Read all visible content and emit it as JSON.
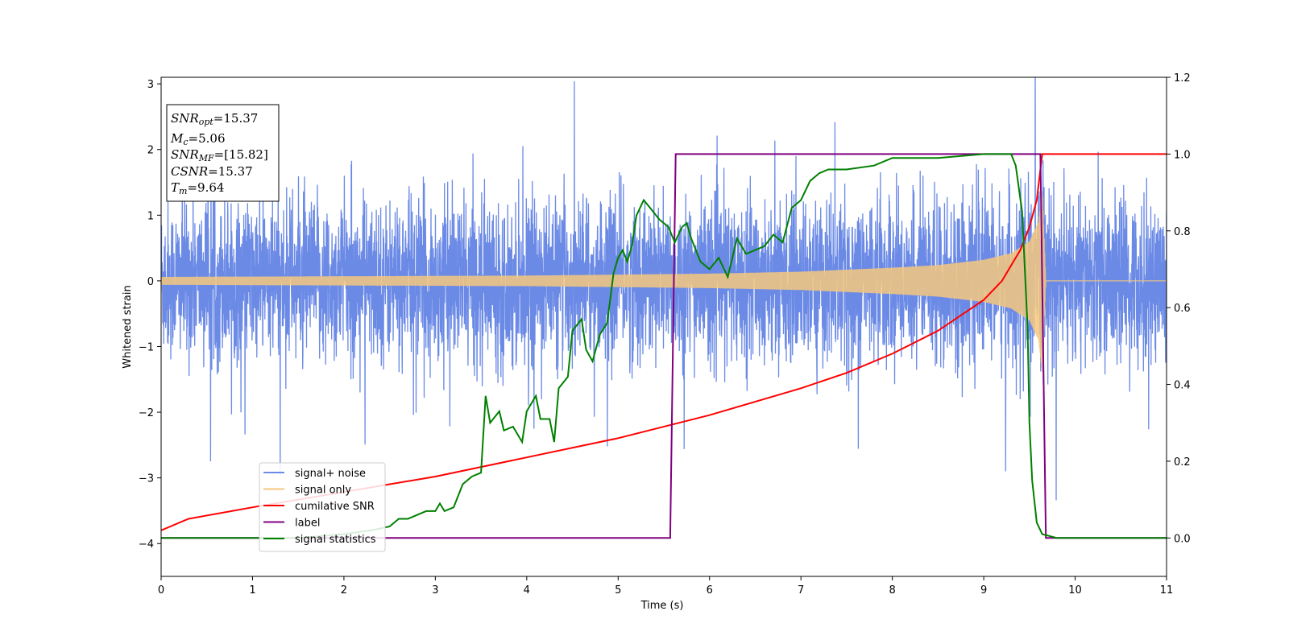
{
  "chart_data": {
    "type": "line",
    "xlabel": "Time (s)",
    "ylabel": "Whitened strain",
    "xlim": [
      0,
      11
    ],
    "ylim": [
      -4.5,
      3.1
    ],
    "y2lim": [
      -0.1,
      1.2
    ],
    "xticks": [
      "0",
      "1",
      "2",
      "3",
      "4",
      "5",
      "6",
      "7",
      "8",
      "9",
      "10",
      "11"
    ],
    "yticks": [
      "−4",
      "−3",
      "−2",
      "−1",
      "0",
      "1",
      "2",
      "3"
    ],
    "y2ticks": [
      "0.0",
      "0.2",
      "0.4",
      "0.6",
      "0.8",
      "1.0",
      "1.2"
    ],
    "legend_position": "lower-left",
    "grid": false,
    "annotation": {
      "snr_opt": {
        "label": "SNR",
        "sub": "opt",
        "value": "=15.37"
      },
      "mc": {
        "label": "M",
        "sub": "c",
        "value": "=5.06"
      },
      "snr_mf": {
        "label": "SNR",
        "sub": "MF",
        "value": "=[15.82]"
      },
      "csnr": {
        "label": "CSNR",
        "value": "=15.37"
      },
      "tm": {
        "label": "T",
        "sub": "m",
        "value": "=9.64"
      }
    },
    "series": [
      {
        "name": "signal+ noise",
        "color": "#6b8ae6",
        "axis": "left",
        "kind": "noise",
        "sigma": 0.95,
        "end": 11
      },
      {
        "name": "signal only",
        "color": "#f5c77e",
        "axis": "left",
        "kind": "chirp",
        "merger": 9.64,
        "envelope": [
          [
            0,
            0.06
          ],
          [
            2,
            0.07
          ],
          [
            4,
            0.08
          ],
          [
            6,
            0.11
          ],
          [
            7,
            0.14
          ],
          [
            8,
            0.2
          ],
          [
            8.5,
            0.24
          ],
          [
            9,
            0.32
          ],
          [
            9.3,
            0.42
          ],
          [
            9.5,
            0.6
          ],
          [
            9.6,
            0.9
          ],
          [
            9.64,
            1.4
          ],
          [
            9.68,
            0.0
          ],
          [
            11,
            0.0
          ]
        ]
      },
      {
        "name": "cumilative SNR",
        "color": "#ff0000",
        "axis": "right",
        "points": [
          [
            0,
            0.02
          ],
          [
            0.3,
            0.05
          ],
          [
            1,
            0.08
          ],
          [
            2,
            0.12
          ],
          [
            3,
            0.16
          ],
          [
            4,
            0.21
          ],
          [
            5,
            0.26
          ],
          [
            6,
            0.32
          ],
          [
            7,
            0.39
          ],
          [
            7.5,
            0.43
          ],
          [
            8,
            0.48
          ],
          [
            8.5,
            0.54
          ],
          [
            9,
            0.62
          ],
          [
            9.2,
            0.67
          ],
          [
            9.4,
            0.75
          ],
          [
            9.5,
            0.81
          ],
          [
            9.58,
            0.88
          ],
          [
            9.64,
            1.0
          ],
          [
            11,
            1.0
          ]
        ]
      },
      {
        "name": "label",
        "color": "#800080",
        "axis": "right",
        "points": [
          [
            0,
            0
          ],
          [
            5.57,
            0
          ],
          [
            5.63,
            1
          ],
          [
            9.62,
            1
          ],
          [
            9.68,
            0
          ],
          [
            11,
            0
          ]
        ]
      },
      {
        "name": "signal statistics",
        "color": "#008000",
        "axis": "right",
        "points": [
          [
            0,
            0
          ],
          [
            1.5,
            0
          ],
          [
            2.0,
            0.01
          ],
          [
            2.3,
            0.02
          ],
          [
            2.5,
            0.03
          ],
          [
            2.6,
            0.05
          ],
          [
            2.7,
            0.05
          ],
          [
            2.8,
            0.06
          ],
          [
            2.9,
            0.07
          ],
          [
            3.0,
            0.07
          ],
          [
            3.05,
            0.09
          ],
          [
            3.1,
            0.07
          ],
          [
            3.2,
            0.08
          ],
          [
            3.3,
            0.14
          ],
          [
            3.4,
            0.16
          ],
          [
            3.5,
            0.17
          ],
          [
            3.55,
            0.37
          ],
          [
            3.6,
            0.3
          ],
          [
            3.7,
            0.33
          ],
          [
            3.75,
            0.28
          ],
          [
            3.85,
            0.29
          ],
          [
            3.95,
            0.25
          ],
          [
            4.0,
            0.33
          ],
          [
            4.1,
            0.37
          ],
          [
            4.15,
            0.31
          ],
          [
            4.25,
            0.31
          ],
          [
            4.3,
            0.25
          ],
          [
            4.35,
            0.39
          ],
          [
            4.45,
            0.42
          ],
          [
            4.5,
            0.54
          ],
          [
            4.6,
            0.57
          ],
          [
            4.65,
            0.49
          ],
          [
            4.72,
            0.46
          ],
          [
            4.8,
            0.53
          ],
          [
            4.88,
            0.56
          ],
          [
            4.95,
            0.69
          ],
          [
            5.0,
            0.73
          ],
          [
            5.05,
            0.75
          ],
          [
            5.1,
            0.72
          ],
          [
            5.15,
            0.76
          ],
          [
            5.2,
            0.84
          ],
          [
            5.28,
            0.88
          ],
          [
            5.35,
            0.86
          ],
          [
            5.45,
            0.83
          ],
          [
            5.55,
            0.81
          ],
          [
            5.62,
            0.77
          ],
          [
            5.7,
            0.81
          ],
          [
            5.75,
            0.82
          ],
          [
            5.8,
            0.78
          ],
          [
            5.9,
            0.72
          ],
          [
            6.0,
            0.7
          ],
          [
            6.1,
            0.73
          ],
          [
            6.2,
            0.68
          ],
          [
            6.3,
            0.78
          ],
          [
            6.4,
            0.74
          ],
          [
            6.5,
            0.75
          ],
          [
            6.6,
            0.76
          ],
          [
            6.7,
            0.79
          ],
          [
            6.8,
            0.77
          ],
          [
            6.9,
            0.86
          ],
          [
            7.0,
            0.88
          ],
          [
            7.1,
            0.93
          ],
          [
            7.2,
            0.95
          ],
          [
            7.3,
            0.96
          ],
          [
            7.5,
            0.96
          ],
          [
            7.8,
            0.97
          ],
          [
            8.0,
            0.99
          ],
          [
            8.5,
            0.99
          ],
          [
            9.0,
            1.0
          ],
          [
            9.3,
            1.0
          ],
          [
            9.35,
            0.97
          ],
          [
            9.42,
            0.85
          ],
          [
            9.48,
            0.55
          ],
          [
            9.5,
            0.3
          ],
          [
            9.53,
            0.15
          ],
          [
            9.58,
            0.04
          ],
          [
            9.64,
            0.01
          ],
          [
            9.8,
            0.0
          ],
          [
            11,
            0.0
          ]
        ]
      }
    ]
  }
}
